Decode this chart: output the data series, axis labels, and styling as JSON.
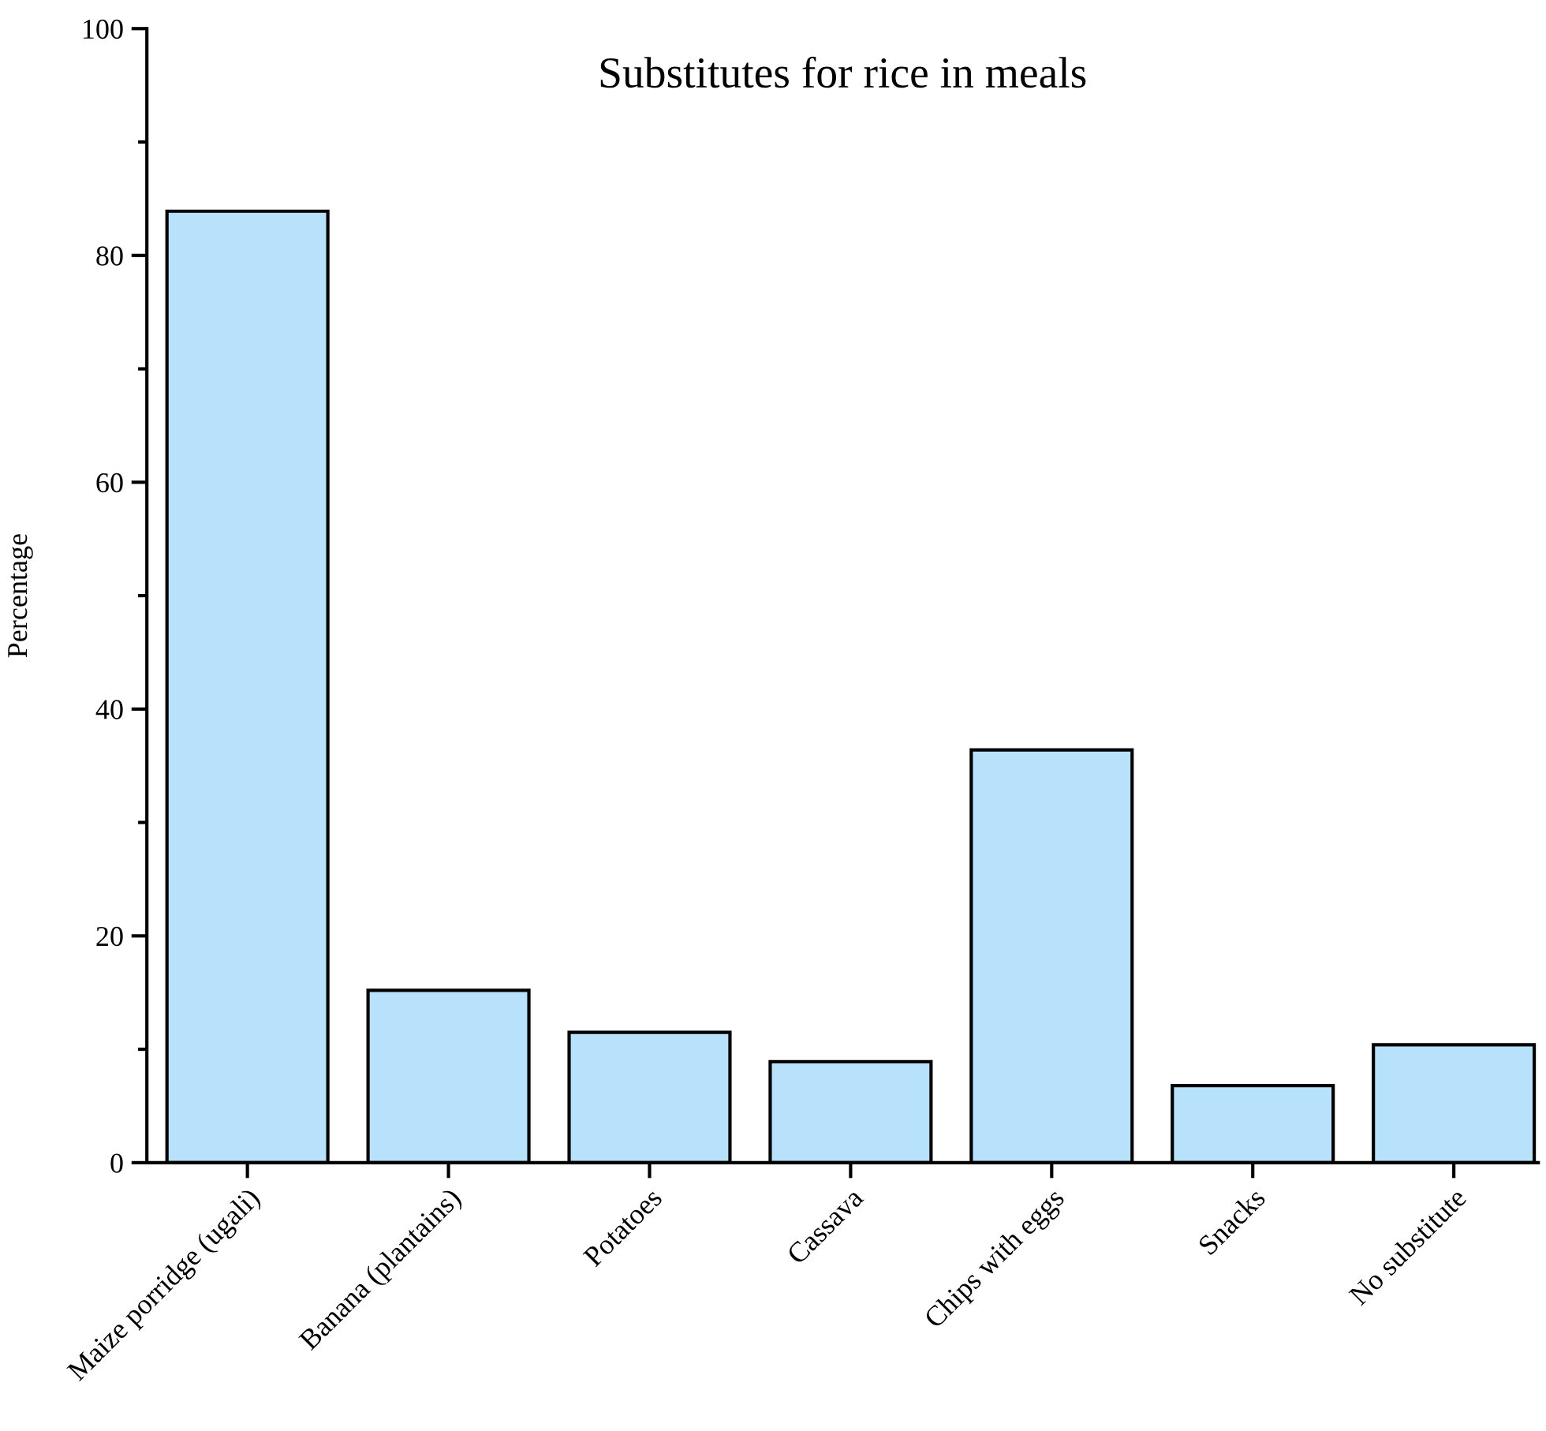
{
  "chart_data": {
    "type": "bar",
    "title": "Substitutes for rice in meals",
    "ylabel": "Percentage",
    "categories": [
      "Maize porridge (ugali)",
      "Banana (plantains)",
      "Potatoes",
      "Cassava",
      "Chips with eggs",
      "Snacks",
      "No substitute"
    ],
    "values": [
      83.9,
      15.2,
      11.5,
      8.9,
      36.4,
      6.8,
      10.4
    ],
    "color": "#b8e2fc",
    "ylim": [
      0,
      100
    ],
    "yticks": [
      0,
      20,
      40,
      60,
      80,
      100
    ],
    "grid": false,
    "legend": false
  }
}
